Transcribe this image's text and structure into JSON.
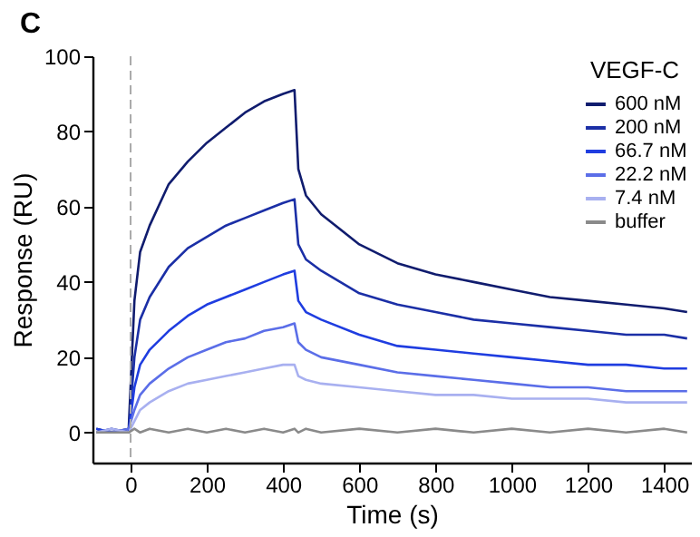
{
  "chart_data": {
    "type": "line",
    "title": "C",
    "xlabel": "Time (s)",
    "ylabel": "Response (RU)",
    "legend_title": "VEGF-C",
    "legend": "top right",
    "grid": false,
    "marker": "none",
    "line_style": "solid",
    "xlim": [
      -100,
      1470
    ],
    "ylim": [
      -8,
      100
    ],
    "xticks": [
      0,
      200,
      400,
      600,
      800,
      1000,
      1200,
      1400
    ],
    "yticks": [
      0,
      20,
      40,
      60,
      80,
      100
    ],
    "ref_lines": [
      {
        "axis": "x",
        "value": 0,
        "label": null,
        "color": "#aaaaaa",
        "line_style": "dashed"
      }
    ],
    "x": [
      -90,
      -50,
      -5,
      10,
      25,
      50,
      100,
      150,
      200,
      250,
      300,
      350,
      400,
      430,
      440,
      460,
      500,
      600,
      700,
      800,
      900,
      1000,
      1100,
      1200,
      1300,
      1400,
      1460
    ],
    "series": [
      {
        "name": "600 nM",
        "color": "#101c6e",
        "values": [
          1,
          0,
          1,
          35,
          48,
          55,
          66,
          72,
          77,
          81,
          85,
          88,
          90,
          91,
          70,
          63,
          58,
          50,
          45,
          42,
          40,
          38,
          36,
          35,
          34,
          33,
          32
        ]
      },
      {
        "name": "200 nM",
        "color": "#1b2fa6",
        "values": [
          0,
          1,
          0,
          20,
          30,
          36,
          44,
          49,
          52,
          55,
          57,
          59,
          61,
          62,
          50,
          46,
          43,
          37,
          34,
          32,
          30,
          29,
          28,
          27,
          26,
          26,
          25
        ]
      },
      {
        "name": "66.7 nM",
        "color": "#1f3de0",
        "values": [
          1,
          0,
          0,
          12,
          18,
          22,
          27,
          31,
          34,
          36,
          38,
          40,
          42,
          43,
          35,
          32,
          30,
          26,
          23,
          22,
          21,
          20,
          19,
          18,
          18,
          17,
          17
        ]
      },
      {
        "name": "22.2 nM",
        "color": "#5b6ee8",
        "values": [
          0,
          0,
          1,
          6,
          10,
          13,
          17,
          20,
          22,
          24,
          25,
          27,
          28,
          29,
          24,
          22,
          20,
          18,
          16,
          15,
          14,
          13,
          12,
          12,
          11,
          11,
          11
        ]
      },
      {
        "name": "7.4 nM",
        "color": "#a8b0f0",
        "values": [
          0,
          1,
          0,
          3,
          6,
          8,
          11,
          13,
          14,
          15,
          16,
          17,
          18,
          18,
          15,
          14,
          13,
          12,
          11,
          10,
          10,
          9,
          9,
          9,
          8,
          8,
          8
        ]
      },
      {
        "name": "buffer",
        "color": "#8a8a8a",
        "values": [
          0,
          0,
          0,
          1,
          0,
          1,
          0,
          1,
          0,
          1,
          0,
          1,
          0,
          1,
          0,
          1,
          0,
          1,
          0,
          1,
          0,
          1,
          0,
          1,
          0,
          1,
          0
        ]
      }
    ]
  }
}
